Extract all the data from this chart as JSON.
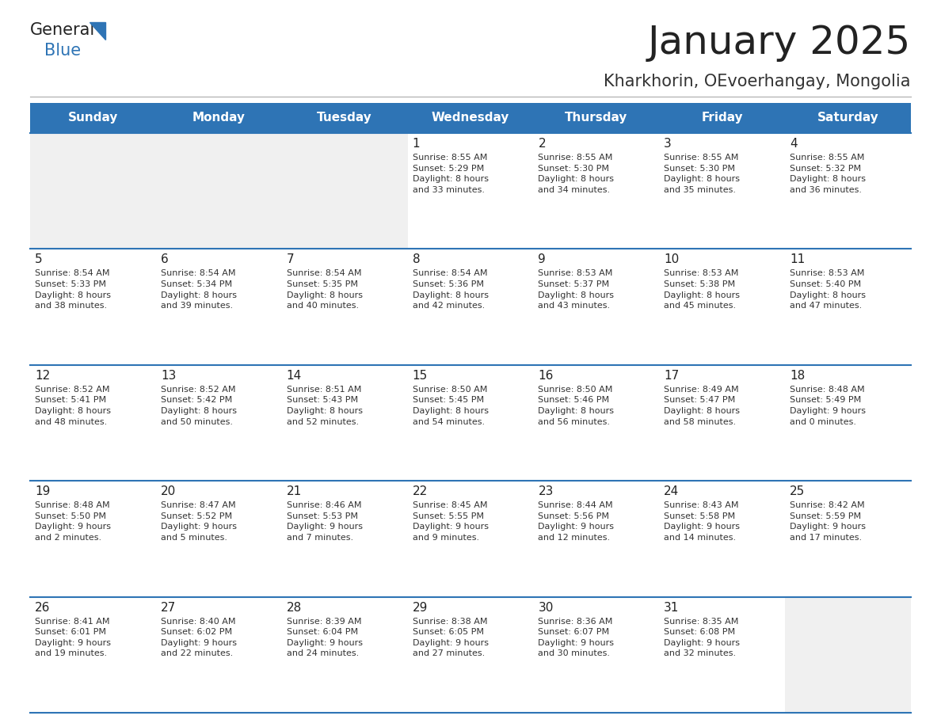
{
  "title": "January 2025",
  "subtitle": "Kharkhorin, OEvoerhangay, Mongolia",
  "days_of_week": [
    "Sunday",
    "Monday",
    "Tuesday",
    "Wednesday",
    "Thursday",
    "Friday",
    "Saturday"
  ],
  "header_bg": "#2e74b5",
  "header_text": "#ffffff",
  "cell_bg_white": "#ffffff",
  "cell_bg_gray": "#f0f0f0",
  "border_color": "#2e74b5",
  "day_num_color": "#222222",
  "text_color": "#333333",
  "title_color": "#222222",
  "subtitle_color": "#333333",
  "logo_general_color": "#222222",
  "logo_blue_color": "#2e74b5",
  "weeks": [
    {
      "days": [
        {
          "day": null,
          "info": null
        },
        {
          "day": null,
          "info": null
        },
        {
          "day": null,
          "info": null
        },
        {
          "day": 1,
          "info": "Sunrise: 8:55 AM\nSunset: 5:29 PM\nDaylight: 8 hours\nand 33 minutes."
        },
        {
          "day": 2,
          "info": "Sunrise: 8:55 AM\nSunset: 5:30 PM\nDaylight: 8 hours\nand 34 minutes."
        },
        {
          "day": 3,
          "info": "Sunrise: 8:55 AM\nSunset: 5:30 PM\nDaylight: 8 hours\nand 35 minutes."
        },
        {
          "day": 4,
          "info": "Sunrise: 8:55 AM\nSunset: 5:32 PM\nDaylight: 8 hours\nand 36 minutes."
        }
      ]
    },
    {
      "days": [
        {
          "day": 5,
          "info": "Sunrise: 8:54 AM\nSunset: 5:33 PM\nDaylight: 8 hours\nand 38 minutes."
        },
        {
          "day": 6,
          "info": "Sunrise: 8:54 AM\nSunset: 5:34 PM\nDaylight: 8 hours\nand 39 minutes."
        },
        {
          "day": 7,
          "info": "Sunrise: 8:54 AM\nSunset: 5:35 PM\nDaylight: 8 hours\nand 40 minutes."
        },
        {
          "day": 8,
          "info": "Sunrise: 8:54 AM\nSunset: 5:36 PM\nDaylight: 8 hours\nand 42 minutes."
        },
        {
          "day": 9,
          "info": "Sunrise: 8:53 AM\nSunset: 5:37 PM\nDaylight: 8 hours\nand 43 minutes."
        },
        {
          "day": 10,
          "info": "Sunrise: 8:53 AM\nSunset: 5:38 PM\nDaylight: 8 hours\nand 45 minutes."
        },
        {
          "day": 11,
          "info": "Sunrise: 8:53 AM\nSunset: 5:40 PM\nDaylight: 8 hours\nand 47 minutes."
        }
      ]
    },
    {
      "days": [
        {
          "day": 12,
          "info": "Sunrise: 8:52 AM\nSunset: 5:41 PM\nDaylight: 8 hours\nand 48 minutes."
        },
        {
          "day": 13,
          "info": "Sunrise: 8:52 AM\nSunset: 5:42 PM\nDaylight: 8 hours\nand 50 minutes."
        },
        {
          "day": 14,
          "info": "Sunrise: 8:51 AM\nSunset: 5:43 PM\nDaylight: 8 hours\nand 52 minutes."
        },
        {
          "day": 15,
          "info": "Sunrise: 8:50 AM\nSunset: 5:45 PM\nDaylight: 8 hours\nand 54 minutes."
        },
        {
          "day": 16,
          "info": "Sunrise: 8:50 AM\nSunset: 5:46 PM\nDaylight: 8 hours\nand 56 minutes."
        },
        {
          "day": 17,
          "info": "Sunrise: 8:49 AM\nSunset: 5:47 PM\nDaylight: 8 hours\nand 58 minutes."
        },
        {
          "day": 18,
          "info": "Sunrise: 8:48 AM\nSunset: 5:49 PM\nDaylight: 9 hours\nand 0 minutes."
        }
      ]
    },
    {
      "days": [
        {
          "day": 19,
          "info": "Sunrise: 8:48 AM\nSunset: 5:50 PM\nDaylight: 9 hours\nand 2 minutes."
        },
        {
          "day": 20,
          "info": "Sunrise: 8:47 AM\nSunset: 5:52 PM\nDaylight: 9 hours\nand 5 minutes."
        },
        {
          "day": 21,
          "info": "Sunrise: 8:46 AM\nSunset: 5:53 PM\nDaylight: 9 hours\nand 7 minutes."
        },
        {
          "day": 22,
          "info": "Sunrise: 8:45 AM\nSunset: 5:55 PM\nDaylight: 9 hours\nand 9 minutes."
        },
        {
          "day": 23,
          "info": "Sunrise: 8:44 AM\nSunset: 5:56 PM\nDaylight: 9 hours\nand 12 minutes."
        },
        {
          "day": 24,
          "info": "Sunrise: 8:43 AM\nSunset: 5:58 PM\nDaylight: 9 hours\nand 14 minutes."
        },
        {
          "day": 25,
          "info": "Sunrise: 8:42 AM\nSunset: 5:59 PM\nDaylight: 9 hours\nand 17 minutes."
        }
      ]
    },
    {
      "days": [
        {
          "day": 26,
          "info": "Sunrise: 8:41 AM\nSunset: 6:01 PM\nDaylight: 9 hours\nand 19 minutes."
        },
        {
          "day": 27,
          "info": "Sunrise: 8:40 AM\nSunset: 6:02 PM\nDaylight: 9 hours\nand 22 minutes."
        },
        {
          "day": 28,
          "info": "Sunrise: 8:39 AM\nSunset: 6:04 PM\nDaylight: 9 hours\nand 24 minutes."
        },
        {
          "day": 29,
          "info": "Sunrise: 8:38 AM\nSunset: 6:05 PM\nDaylight: 9 hours\nand 27 minutes."
        },
        {
          "day": 30,
          "info": "Sunrise: 8:36 AM\nSunset: 6:07 PM\nDaylight: 9 hours\nand 30 minutes."
        },
        {
          "day": 31,
          "info": "Sunrise: 8:35 AM\nSunset: 6:08 PM\nDaylight: 9 hours\nand 32 minutes."
        },
        {
          "day": null,
          "info": null
        }
      ]
    }
  ]
}
